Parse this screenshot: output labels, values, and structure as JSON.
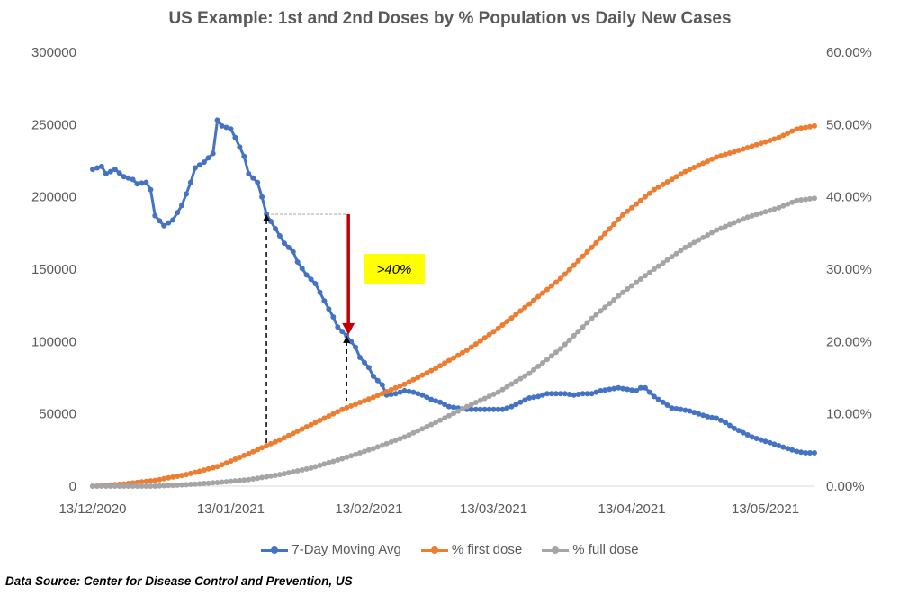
{
  "chart_data": {
    "type": "line",
    "title": "US Example: 1st and 2nd Doses by % Population vs Daily New Cases",
    "x_tick_labels": [
      "13/12/2020",
      "13/01/2021",
      "13/02/2021",
      "13/03/2021",
      "13/04/2021",
      "13/05/2021"
    ],
    "xlim": [
      "2020-12-13",
      "2021-05-24"
    ],
    "left_axis": {
      "ylim": [
        0,
        300000
      ],
      "tick_labels": [
        "0",
        "50000",
        "100000",
        "150000",
        "200000",
        "250000",
        "300000"
      ]
    },
    "right_axis": {
      "ylim": [
        0,
        0.6
      ],
      "tick_labels": [
        "0.00%",
        "10.00%",
        "20.00%",
        "30.00%",
        "40.00%",
        "50.00%",
        "60.00%"
      ]
    },
    "legend_position": "bottom",
    "gridlines": false,
    "series": [
      {
        "name": "7-Day Moving Avg",
        "axis": "left",
        "color": "#4472c4",
        "points": [
          [
            "2020-12-13",
            219000
          ],
          [
            "2020-12-15",
            221000
          ],
          [
            "2020-12-16",
            216000
          ],
          [
            "2020-12-18",
            219000
          ],
          [
            "2020-12-20",
            214000
          ],
          [
            "2020-12-22",
            212000
          ],
          [
            "2020-12-23",
            209000
          ],
          [
            "2020-12-25",
            210000
          ],
          [
            "2020-12-26",
            205000
          ],
          [
            "2020-12-27",
            187000
          ],
          [
            "2020-12-29",
            180000
          ],
          [
            "2020-12-31",
            184000
          ],
          [
            "2021-01-02",
            194000
          ],
          [
            "2021-01-04",
            210000
          ],
          [
            "2021-01-05",
            220000
          ],
          [
            "2021-01-07",
            224000
          ],
          [
            "2021-01-09",
            230000
          ],
          [
            "2021-01-10",
            253000
          ],
          [
            "2021-01-11",
            249000
          ],
          [
            "2021-01-13",
            247000
          ],
          [
            "2021-01-14",
            241000
          ],
          [
            "2021-01-16",
            228000
          ],
          [
            "2021-01-17",
            216000
          ],
          [
            "2021-01-19",
            210000
          ],
          [
            "2021-01-20",
            200000
          ],
          [
            "2021-01-21",
            188000
          ],
          [
            "2021-01-23",
            178000
          ],
          [
            "2021-01-25",
            168000
          ],
          [
            "2021-01-27",
            162000
          ],
          [
            "2021-01-28",
            155000
          ],
          [
            "2021-01-30",
            146000
          ],
          [
            "2021-02-01",
            140000
          ],
          [
            "2021-02-03",
            128000
          ],
          [
            "2021-02-05",
            117000
          ],
          [
            "2021-02-06",
            110000
          ],
          [
            "2021-02-08",
            104000
          ],
          [
            "2021-02-10",
            96000
          ],
          [
            "2021-02-11",
            89000
          ],
          [
            "2021-02-13",
            82000
          ],
          [
            "2021-02-14",
            76000
          ],
          [
            "2021-02-16",
            70000
          ],
          [
            "2021-02-17",
            63000
          ],
          [
            "2021-02-19",
            64000
          ],
          [
            "2021-02-21",
            66000
          ],
          [
            "2021-02-23",
            65000
          ],
          [
            "2021-02-25",
            63000
          ],
          [
            "2021-02-27",
            60000
          ],
          [
            "2021-03-01",
            58000
          ],
          [
            "2021-03-03",
            55000
          ],
          [
            "2021-03-05",
            54000
          ],
          [
            "2021-03-07",
            53000
          ],
          [
            "2021-03-09",
            53000
          ],
          [
            "2021-03-11",
            53000
          ],
          [
            "2021-03-13",
            53000
          ],
          [
            "2021-03-15",
            53000
          ],
          [
            "2021-03-17",
            55000
          ],
          [
            "2021-03-19",
            58000
          ],
          [
            "2021-03-21",
            61000
          ],
          [
            "2021-03-23",
            62000
          ],
          [
            "2021-03-25",
            64000
          ],
          [
            "2021-03-27",
            64000
          ],
          [
            "2021-03-29",
            64000
          ],
          [
            "2021-03-31",
            63000
          ],
          [
            "2021-04-02",
            64000
          ],
          [
            "2021-04-04",
            64000
          ],
          [
            "2021-04-06",
            66000
          ],
          [
            "2021-04-08",
            67000
          ],
          [
            "2021-04-10",
            68000
          ],
          [
            "2021-04-12",
            67000
          ],
          [
            "2021-04-14",
            66000
          ],
          [
            "2021-04-15",
            68000
          ],
          [
            "2021-04-16",
            68000
          ],
          [
            "2021-04-18",
            62000
          ],
          [
            "2021-04-20",
            58000
          ],
          [
            "2021-04-22",
            54000
          ],
          [
            "2021-04-24",
            53000
          ],
          [
            "2021-04-26",
            52000
          ],
          [
            "2021-04-28",
            50000
          ],
          [
            "2021-04-30",
            48000
          ],
          [
            "2021-05-02",
            47000
          ],
          [
            "2021-05-04",
            44000
          ],
          [
            "2021-05-06",
            40000
          ],
          [
            "2021-05-08",
            37000
          ],
          [
            "2021-05-10",
            34000
          ],
          [
            "2021-05-12",
            32000
          ],
          [
            "2021-05-14",
            30000
          ],
          [
            "2021-05-16",
            28000
          ],
          [
            "2021-05-18",
            26000
          ],
          [
            "2021-05-20",
            24000
          ],
          [
            "2021-05-22",
            23000
          ],
          [
            "2021-05-24",
            23000
          ]
        ]
      },
      {
        "name": "% first dose",
        "axis": "right",
        "color": "#ed7d31",
        "points": [
          [
            "2020-12-13",
            0.0
          ],
          [
            "2020-12-20",
            0.003
          ],
          [
            "2020-12-27",
            0.008
          ],
          [
            "2021-01-03",
            0.016
          ],
          [
            "2021-01-10",
            0.027
          ],
          [
            "2021-01-17",
            0.045
          ],
          [
            "2021-01-24",
            0.064
          ],
          [
            "2021-01-31",
            0.085
          ],
          [
            "2021-02-07",
            0.106
          ],
          [
            "2021-02-14",
            0.123
          ],
          [
            "2021-02-21",
            0.141
          ],
          [
            "2021-02-28",
            0.163
          ],
          [
            "2021-03-07",
            0.188
          ],
          [
            "2021-03-14",
            0.218
          ],
          [
            "2021-03-21",
            0.252
          ],
          [
            "2021-03-28",
            0.287
          ],
          [
            "2021-04-04",
            0.33
          ],
          [
            "2021-04-11",
            0.375
          ],
          [
            "2021-04-18",
            0.41
          ],
          [
            "2021-04-25",
            0.435
          ],
          [
            "2021-05-02",
            0.455
          ],
          [
            "2021-05-09",
            0.468
          ],
          [
            "2021-05-16",
            0.482
          ],
          [
            "2021-05-20",
            0.494
          ],
          [
            "2021-05-24",
            0.498
          ]
        ]
      },
      {
        "name": "% full dose",
        "axis": "right",
        "color": "#a5a5a5",
        "points": [
          [
            "2020-12-13",
            0.0
          ],
          [
            "2020-12-27",
            0.0
          ],
          [
            "2021-01-03",
            0.002
          ],
          [
            "2021-01-10",
            0.005
          ],
          [
            "2021-01-17",
            0.009
          ],
          [
            "2021-01-24",
            0.016
          ],
          [
            "2021-01-31",
            0.025
          ],
          [
            "2021-02-07",
            0.038
          ],
          [
            "2021-02-14",
            0.052
          ],
          [
            "2021-02-21",
            0.068
          ],
          [
            "2021-02-28",
            0.088
          ],
          [
            "2021-03-07",
            0.11
          ],
          [
            "2021-03-14",
            0.13
          ],
          [
            "2021-03-21",
            0.156
          ],
          [
            "2021-03-28",
            0.19
          ],
          [
            "2021-04-04",
            0.232
          ],
          [
            "2021-04-11",
            0.268
          ],
          [
            "2021-04-18",
            0.3
          ],
          [
            "2021-04-25",
            0.33
          ],
          [
            "2021-05-02",
            0.354
          ],
          [
            "2021-05-09",
            0.372
          ],
          [
            "2021-05-16",
            0.385
          ],
          [
            "2021-05-20",
            0.395
          ],
          [
            "2021-05-24",
            0.398
          ]
        ]
      }
    ],
    "annotation": {
      "label": ">40%",
      "from": [
        "2021-01-21",
        188000
      ],
      "to": [
        "2021-02-08",
        104000
      ],
      "colors": {
        "arrow": "#c00000",
        "highlight": "#ffff00"
      }
    }
  },
  "source_note": "Data Source: Center for Disease Control and Prevention, US"
}
